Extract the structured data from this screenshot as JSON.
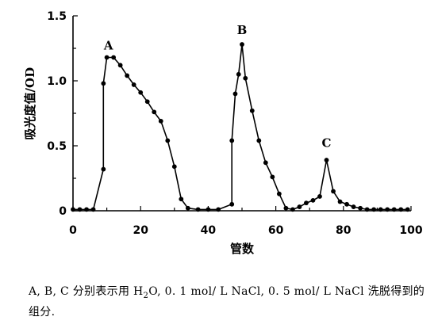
{
  "chart_data": {
    "type": "line",
    "xlabel": "管数",
    "ylabel": "吸光度值/OD",
    "xlim": [
      0,
      100
    ],
    "ylim": [
      0,
      1.5
    ],
    "x_ticks": [
      0,
      20,
      40,
      60,
      80,
      100
    ],
    "y_ticks": [
      0,
      0.5,
      1.0,
      1.5
    ],
    "y_tick_labels": [
      "0",
      "0.5",
      "1.0",
      "1.5"
    ],
    "grid": false,
    "series": [
      {
        "points": [
          [
            0,
            0.01
          ],
          [
            2,
            0.01
          ],
          [
            4,
            0.01
          ],
          [
            6,
            0.01
          ],
          [
            9,
            0.32
          ],
          [
            9,
            0.98
          ],
          [
            10,
            1.18
          ],
          [
            12,
            1.18
          ],
          [
            14,
            1.12
          ],
          [
            16,
            1.04
          ],
          [
            18,
            0.97
          ],
          [
            20,
            0.91
          ],
          [
            22,
            0.84
          ],
          [
            24,
            0.76
          ],
          [
            26,
            0.69
          ],
          [
            28,
            0.54
          ],
          [
            30,
            0.34
          ],
          [
            32,
            0.09
          ],
          [
            34,
            0.02
          ],
          [
            37,
            0.01
          ],
          [
            40,
            0.01
          ],
          [
            43,
            0.01
          ],
          [
            47,
            0.05
          ],
          [
            47,
            0.54
          ],
          [
            48,
            0.9
          ],
          [
            49,
            1.05
          ],
          [
            50,
            1.28
          ],
          [
            51,
            1.02
          ],
          [
            53,
            0.77
          ],
          [
            55,
            0.54
          ],
          [
            57,
            0.37
          ],
          [
            59,
            0.26
          ],
          [
            61,
            0.13
          ],
          [
            63,
            0.02
          ],
          [
            65,
            0.01
          ],
          [
            67,
            0.03
          ],
          [
            69,
            0.06
          ],
          [
            71,
            0.08
          ],
          [
            73,
            0.11
          ],
          [
            75,
            0.39
          ],
          [
            77,
            0.15
          ],
          [
            79,
            0.07
          ],
          [
            81,
            0.05
          ],
          [
            83,
            0.03
          ],
          [
            85,
            0.02
          ],
          [
            87,
            0.01
          ],
          [
            89,
            0.01
          ],
          [
            91,
            0.01
          ],
          [
            93,
            0.01
          ],
          [
            95,
            0.01
          ],
          [
            97,
            0.01
          ],
          [
            99,
            0.01
          ]
        ]
      }
    ],
    "annotations": [
      {
        "text": "A",
        "x": 10.5,
        "y": 1.24
      },
      {
        "text": "B",
        "x": 50,
        "y": 1.36
      },
      {
        "text": "C",
        "x": 75,
        "y": 0.49
      }
    ]
  },
  "caption": {
    "part1": "A, B, C 分别表示用 H",
    "sub": "2",
    "part2": "O,  0. 1 mol/ L NaCl,  0. 5 mol/ L  NaCl 洗脱得到的组分."
  }
}
